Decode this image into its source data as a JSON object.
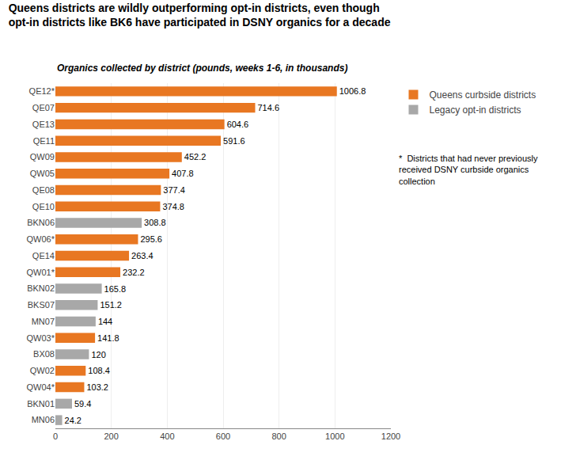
{
  "chart_data": {
    "type": "bar",
    "orientation": "horizontal",
    "title": "Queens districts are wildly outperforming opt-in districts, even though\nopt-in districts like BK6 have participated in DSNY organics for a decade",
    "subtitle": "Organics collected by district (pounds, weeks 1-6, in thousands)",
    "categories": [
      "QE12*",
      "QE07",
      "QE13",
      "QE11",
      "QW09",
      "QW05",
      "QE08",
      "QE10",
      "BKN06",
      "QW06*",
      "QE14",
      "QW01*",
      "BKN02",
      "BKS07",
      "MN07",
      "QW03*",
      "BX08",
      "QW02",
      "QW04*",
      "BKN01",
      "MN06"
    ],
    "series": [
      {
        "name": "Queens curbside districts",
        "color": "#E87722",
        "values": [
          1006.8,
          714.6,
          604.6,
          591.6,
          452.2,
          407.8,
          377.4,
          374.8,
          null,
          295.6,
          263.4,
          232.2,
          null,
          null,
          null,
          141.8,
          null,
          108.4,
          103.2,
          null,
          null
        ]
      },
      {
        "name": "Legacy opt-in districts",
        "color": "#A8A8A8",
        "values": [
          null,
          null,
          null,
          null,
          null,
          null,
          null,
          null,
          308.8,
          null,
          null,
          null,
          165.8,
          151.2,
          144.0,
          null,
          120.0,
          null,
          null,
          59.4,
          24.2
        ]
      }
    ],
    "xlim": [
      0,
      1200
    ],
    "xticks": [
      0,
      200,
      400,
      600,
      800,
      1000,
      1200
    ],
    "grid": true,
    "legend": "right",
    "data_labels": true,
    "annotations": [
      "*  Districts that had never previously\nreceived DSNY curbside organics\ncollection"
    ]
  }
}
